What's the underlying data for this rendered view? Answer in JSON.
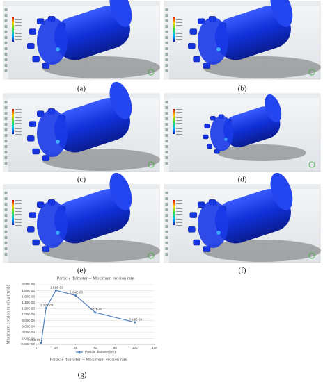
{
  "panels": [
    {
      "label": "(a)"
    },
    {
      "label": "(b)"
    },
    {
      "label": "(c)"
    },
    {
      "label": "(d)"
    },
    {
      "label": "(e)"
    },
    {
      "label": "(f)"
    }
  ],
  "chart_label": "(g)",
  "chart_data": {
    "type": "line",
    "title": "Particle diameter -- Maximum erosion rate",
    "x_label": "Particle diameter -- Maximum erosion rate",
    "y_label": "Maximum erosion rate(kg/(m²s))",
    "x": [
      5,
      10,
      20,
      40,
      60,
      100
    ],
    "series": [
      {
        "name": "Particle diameter(um)",
        "color": "#4f81bd",
        "values": [
          4.69e-05,
          0.00122,
          0.00181,
          0.00164,
          0.00107,
          0.000743
        ],
        "value_labels": [
          "4.69E-05",
          "1.22E-03",
          "1.81E-03",
          "1.64E-03",
          "1.07E-03",
          "7.43E-04"
        ]
      }
    ],
    "xlim": [
      0,
      120
    ],
    "xticks": [
      0,
      20,
      40,
      60,
      80,
      100,
      120
    ],
    "ylim": [
      0,
      0.002
    ],
    "yticks": [
      {
        "value": 0,
        "label": "0.00E+00"
      },
      {
        "value": 0.0002,
        "label": "2.00E-04"
      },
      {
        "value": 0.0004,
        "label": "4.00E-04"
      },
      {
        "value": 0.0006,
        "label": "6.00E-04"
      },
      {
        "value": 0.0008,
        "label": "8.00E-04"
      },
      {
        "value": 0.001,
        "label": "1.00E-03"
      },
      {
        "value": 0.0012,
        "label": "1.20E-03"
      },
      {
        "value": 0.0014,
        "label": "1.40E-03"
      },
      {
        "value": 0.0016,
        "label": "1.60E-03"
      },
      {
        "value": 0.0018,
        "label": "1.80E-03"
      },
      {
        "value": 0.002,
        "label": "2.00E-03"
      }
    ],
    "grid": true,
    "legend": "bottom"
  }
}
